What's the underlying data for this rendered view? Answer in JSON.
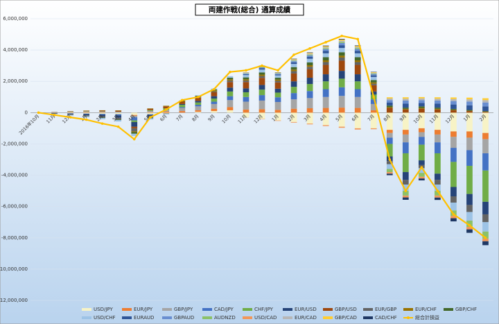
{
  "chart_data": {
    "type": "bar",
    "stacked": true,
    "title": "両建作戦(総合) 通算成績",
    "categories": [
      "2016年10月",
      "11月",
      "12月",
      "1月",
      "2月",
      "3月",
      "4月",
      "5月",
      "6月",
      "7月",
      "8月",
      "9月",
      "10月",
      "11月",
      "12月",
      "1月",
      "2月",
      "3月",
      "4月",
      "5月",
      "6月",
      "7月",
      "8月",
      "9月",
      "10月",
      "11月",
      "12月",
      "1月",
      "2月"
    ],
    "ylim": [
      -12000000,
      6000000
    ],
    "yticks": [
      {
        "value": -12000000,
        "label": "-12,000,000"
      },
      {
        "value": -10000000,
        "label": "-10,000,000"
      },
      {
        "value": -8000000,
        "label": "-8,000,000"
      },
      {
        "value": -6000000,
        "label": "-6,000,000"
      },
      {
        "value": -4000000,
        "label": "-4,000,000"
      },
      {
        "value": -2000000,
        "label": "-2,000,000"
      },
      0,
      {
        "value": 2000000,
        "label": "2,000,000"
      },
      {
        "value": 4000000,
        "label": "4,000,000"
      },
      {
        "value": 6000000,
        "label": "6,000,000"
      }
    ],
    "grid": true,
    "series": [
      {
        "name": "USD/JPY",
        "color": "#f7f3c6",
        "values": [
          0,
          -20000,
          -40000,
          -60000,
          -80000,
          -100000,
          -150000,
          -100000,
          -50000,
          0,
          50000,
          100000,
          150000,
          -300000,
          -400000,
          -500000,
          -600000,
          -700000,
          -800000,
          -900000,
          -1000000,
          -1000000,
          -1100000,
          -1100000,
          -1000000,
          -1100000,
          -1200000,
          -1200000,
          -1300000
        ]
      },
      {
        "name": "EUR/JPY",
        "color": "#ed7d31",
        "values": [
          0,
          10000,
          20000,
          30000,
          20000,
          0,
          -50000,
          30000,
          60000,
          100000,
          100000,
          150000,
          200000,
          200000,
          220000,
          180000,
          250000,
          280000,
          300000,
          320000,
          300000,
          150000,
          -200000,
          -300000,
          -250000,
          -300000,
          -350000,
          -400000,
          -400000
        ]
      },
      {
        "name": "GBP/JPY",
        "color": "#a5a5a5",
        "values": [
          0,
          20000,
          30000,
          40000,
          50000,
          60000,
          -100000,
          80000,
          120000,
          200000,
          250000,
          300000,
          450000,
          500000,
          550000,
          500000,
          600000,
          650000,
          700000,
          750000,
          700000,
          400000,
          -300000,
          -500000,
          -300000,
          -500000,
          -700000,
          -800000,
          -900000
        ]
      },
      {
        "name": "CAD/JPY",
        "color": "#4472c4",
        "values": [
          0,
          -10000,
          -20000,
          -30000,
          -50000,
          -80000,
          -200000,
          -50000,
          0,
          50000,
          100000,
          150000,
          250000,
          300000,
          350000,
          300000,
          400000,
          450000,
          500000,
          550000,
          500000,
          300000,
          -400000,
          -700000,
          -500000,
          -700000,
          -900000,
          -1000000,
          -1100000
        ]
      },
      {
        "name": "CHF/JPY",
        "color": "#70ad47",
        "values": [
          0,
          0,
          10000,
          20000,
          10000,
          0,
          -100000,
          50000,
          100000,
          150000,
          150000,
          200000,
          300000,
          300000,
          350000,
          300000,
          400000,
          450000,
          500000,
          550000,
          500000,
          300000,
          -800000,
          -1200000,
          -1000000,
          -1300000,
          -1600000,
          -1800000,
          -2000000
        ]
      },
      {
        "name": "EUR/USD",
        "color": "#264478",
        "values": [
          0,
          -30000,
          -50000,
          -80000,
          -100000,
          -150000,
          -300000,
          -100000,
          0,
          50000,
          100000,
          150000,
          250000,
          250000,
          300000,
          250000,
          350000,
          400000,
          450000,
          500000,
          450000,
          200000,
          -300000,
          -500000,
          -300000,
          -400000,
          -600000,
          -700000,
          -800000
        ]
      },
      {
        "name": "GBP/USD",
        "color": "#9e480e",
        "values": [
          0,
          10000,
          20000,
          30000,
          50000,
          60000,
          -100000,
          80000,
          120000,
          150000,
          200000,
          250000,
          350000,
          400000,
          450000,
          400000,
          500000,
          550000,
          600000,
          650000,
          600000,
          400000,
          300000,
          200000,
          250000,
          200000,
          150000,
          100000,
          50000
        ]
      },
      {
        "name": "EUR/GBP",
        "color": "#636363",
        "values": [
          0,
          -10000,
          -30000,
          -50000,
          -80000,
          -100000,
          -200000,
          -80000,
          -30000,
          0,
          30000,
          50000,
          100000,
          100000,
          120000,
          100000,
          150000,
          150000,
          180000,
          200000,
          180000,
          100000,
          -200000,
          -300000,
          -200000,
          -300000,
          -400000,
          -450000,
          -500000
        ]
      },
      {
        "name": "EUR/CHF",
        "color": "#997300",
        "values": [
          0,
          5000,
          10000,
          15000,
          20000,
          25000,
          -50000,
          30000,
          40000,
          50000,
          60000,
          70000,
          80000,
          80000,
          90000,
          80000,
          100000,
          100000,
          110000,
          120000,
          110000,
          80000,
          50000,
          40000,
          50000,
          40000,
          30000,
          20000,
          10000
        ]
      },
      {
        "name": "GBP/CHF",
        "color": "#43682b",
        "values": [
          0,
          -5000,
          -10000,
          -20000,
          -30000,
          -40000,
          -100000,
          -30000,
          0,
          20000,
          40000,
          60000,
          100000,
          120000,
          140000,
          120000,
          160000,
          180000,
          200000,
          220000,
          200000,
          150000,
          100000,
          80000,
          100000,
          80000,
          60000,
          50000,
          40000
        ]
      },
      {
        "name": "USD/CHF",
        "color": "#9dc3e6",
        "values": [
          0,
          -20000,
          -40000,
          -60000,
          -80000,
          -100000,
          -150000,
          -80000,
          -40000,
          0,
          30000,
          60000,
          100000,
          150000,
          180000,
          150000,
          200000,
          230000,
          250000,
          270000,
          250000,
          200000,
          -300000,
          -400000,
          -300000,
          -400000,
          -500000,
          -550000,
          -600000
        ]
      },
      {
        "name": "EURAUD",
        "color": "#2f5597",
        "values": [
          0,
          0,
          0,
          0,
          0,
          0,
          0,
          0,
          0,
          0,
          0,
          0,
          0,
          50000,
          80000,
          60000,
          100000,
          120000,
          150000,
          180000,
          160000,
          100000,
          200000,
          250000,
          220000,
          250000,
          280000,
          300000,
          300000
        ]
      },
      {
        "name": "GBPAUD",
        "color": "#698ed0",
        "values": [
          0,
          0,
          0,
          0,
          0,
          0,
          0,
          0,
          0,
          0,
          0,
          0,
          0,
          40000,
          60000,
          50000,
          80000,
          100000,
          120000,
          140000,
          120000,
          80000,
          150000,
          200000,
          180000,
          200000,
          220000,
          240000,
          250000
        ]
      },
      {
        "name": "AUDNZD",
        "color": "#8cc168",
        "values": [
          0,
          0,
          0,
          0,
          0,
          0,
          0,
          0,
          0,
          0,
          0,
          0,
          0,
          20000,
          30000,
          25000,
          40000,
          50000,
          60000,
          70000,
          60000,
          40000,
          -200000,
          -300000,
          -250000,
          -300000,
          -350000,
          -400000,
          -450000
        ]
      },
      {
        "name": "USD/CAD",
        "color": "#f1975a",
        "values": [
          0,
          0,
          0,
          0,
          0,
          0,
          0,
          0,
          0,
          0,
          0,
          0,
          0,
          -10000,
          -20000,
          -30000,
          -40000,
          -50000,
          -60000,
          -70000,
          -80000,
          -60000,
          -100000,
          -120000,
          -110000,
          -130000,
          -150000,
          -160000,
          -170000
        ]
      },
      {
        "name": "EUR/CAD",
        "color": "#b7b7b7",
        "values": [
          0,
          0,
          0,
          0,
          0,
          0,
          0,
          0,
          0,
          0,
          0,
          0,
          0,
          30000,
          40000,
          30000,
          50000,
          60000,
          70000,
          80000,
          70000,
          50000,
          100000,
          120000,
          110000,
          120000,
          130000,
          140000,
          150000
        ]
      },
      {
        "name": "GBP/CAD",
        "color": "#ffcd33",
        "values": [
          0,
          0,
          0,
          0,
          0,
          0,
          0,
          0,
          0,
          0,
          0,
          0,
          0,
          20000,
          30000,
          20000,
          40000,
          50000,
          60000,
          70000,
          60000,
          40000,
          80000,
          90000,
          85000,
          90000,
          100000,
          110000,
          120000
        ]
      },
      {
        "name": "CAD/CHF",
        "color": "#1f3864",
        "values": [
          0,
          0,
          0,
          0,
          0,
          0,
          0,
          0,
          0,
          0,
          0,
          0,
          0,
          10000,
          20000,
          15000,
          25000,
          30000,
          35000,
          40000,
          35000,
          20000,
          -100000,
          -150000,
          -120000,
          -150000,
          -200000,
          -220000,
          -250000
        ]
      },
      {
        "name": "総合計損益",
        "type": "line",
        "color": "#ffc000",
        "values": [
          0,
          -150000,
          -300000,
          -450000,
          -700000,
          -900000,
          -1700000,
          -300000,
          200000,
          800000,
          1000000,
          1500000,
          2600000,
          2700000,
          3000000,
          2700000,
          3700000,
          4100000,
          4500000,
          4900000,
          4700000,
          1000000,
          -3000000,
          -5000000,
          -3500000,
          -5000000,
          -6500000,
          -7200000,
          -8000000
        ]
      }
    ]
  }
}
